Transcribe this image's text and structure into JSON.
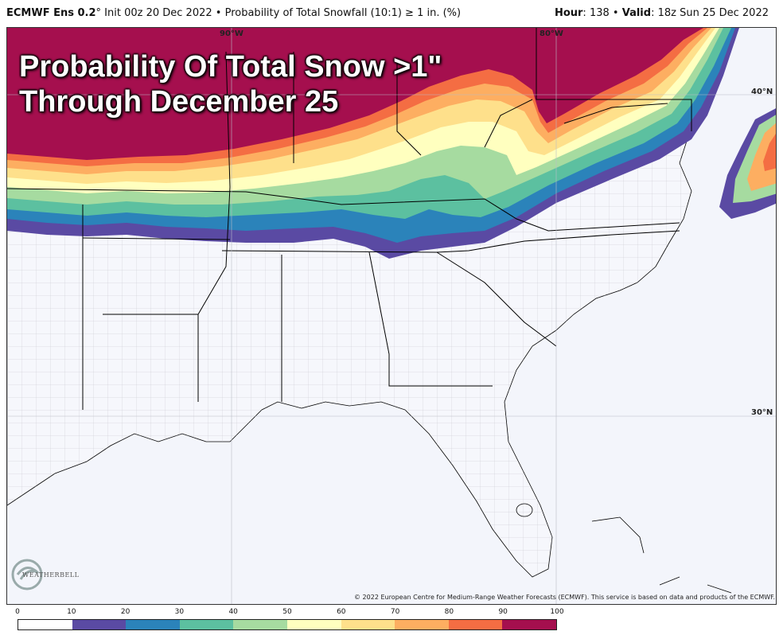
{
  "header": {
    "model": "ECMWF Ens 0.2",
    "degree": "°",
    "init": "Init 00z 20 Dec 2022",
    "bullet": "•",
    "product": "Probability of Total Snowfall (10:1) ≥ 1 in. (%)",
    "hour_label": "Hour",
    "hour_value": "138",
    "valid_label": "Valid",
    "valid_value": "18z Sun 25 Dec 2022"
  },
  "overlay": {
    "line1": "Probability Of Total Snow >1\"",
    "line2": "Through December 25"
  },
  "gridlabels": {
    "lon_90": "90°W",
    "lon_80": "80°W",
    "lat_40": "40°N",
    "lat_30": "30°N"
  },
  "logo": {
    "text": "WEATHERBELL"
  },
  "credit": "© 2022 European Centre for Medium-Range Weather Forecasts (ECMWF). This service is based on data and products of the ECMWF.",
  "legend": {
    "ticks": [
      "0",
      "10",
      "20",
      "30",
      "40",
      "50",
      "60",
      "70",
      "80",
      "90",
      "100"
    ],
    "colors": [
      "#ffffff",
      "#5a4aa3",
      "#2b83ba",
      "#5cc0a0",
      "#a6dba0",
      "#ffffbf",
      "#fee08b",
      "#fdae61",
      "#f46d43",
      "#a50f4e"
    ]
  }
}
